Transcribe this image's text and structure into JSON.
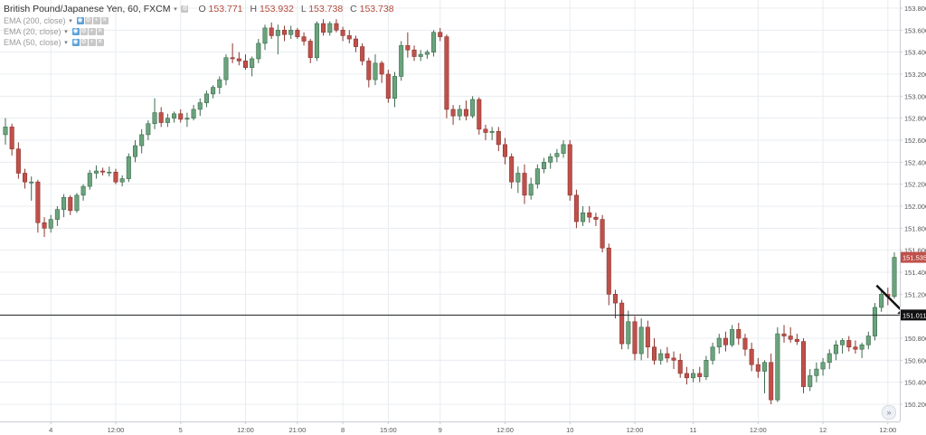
{
  "legend": {
    "symbol": "British Pound/Japanese Yen, 60, FXCM",
    "open_label": "O",
    "open": "153.771",
    "high_label": "H",
    "high": "153.932",
    "low_label": "L",
    "low": "153.738",
    "close_label": "C",
    "close": "153.738",
    "indicators": [
      {
        "name": "EMA (200, close)"
      },
      {
        "name": "EMA (20, close)"
      },
      {
        "name": "EMA (50, close)"
      }
    ]
  },
  "icons": {
    "dropdown": "chevron-down-icon",
    "visibility": "eye-icon",
    "settings": "gear-icon",
    "remove": "close-icon",
    "more": "plus-icon",
    "scroll": "double-chevron-right-icon"
  },
  "colors": {
    "up": "#6aa37c",
    "down": "#c0504a",
    "grid": "#e8ecf0",
    "axis_text": "#555555",
    "price_badge": "#c0504a",
    "line_badge": "#111111"
  },
  "chart_data": {
    "type": "candlestick",
    "symbol": "British Pound/Japanese Yen",
    "interval": "60",
    "source": "FXCM",
    "y_ticks": [
      "153.800",
      "153.600",
      "153.400",
      "153.200",
      "153.000",
      "152.800",
      "152.600",
      "152.400",
      "152.200",
      "152.000",
      "151.800",
      "151.600",
      "151.400",
      "151.200",
      "151.000",
      "150.800",
      "150.600",
      "150.400",
      "150.200"
    ],
    "ylim": [
      150.1,
      153.9
    ],
    "x_ticks": [
      {
        "label": "4",
        "bar": 7
      },
      {
        "label": "12:00",
        "bar": 17
      },
      {
        "label": "5",
        "bar": 27
      },
      {
        "label": "12:00",
        "bar": 37
      },
      {
        "label": "21:00",
        "bar": 45
      },
      {
        "label": "8",
        "bar": 52
      },
      {
        "label": "15:00",
        "bar": 59
      },
      {
        "label": "9",
        "bar": 67
      },
      {
        "label": "12:00",
        "bar": 77
      },
      {
        "label": "10",
        "bar": 87
      },
      {
        "label": "12:00",
        "bar": 97
      },
      {
        "label": "11",
        "bar": 106
      },
      {
        "label": "12:00",
        "bar": 116
      },
      {
        "label": "12",
        "bar": 126
      },
      {
        "label": "12:00",
        "bar": 136
      }
    ],
    "horizontal_line": 151.011,
    "last_price": 151.535,
    "arrow_annotation": {
      "bar": 139,
      "price": 151.0
    },
    "candles": [
      {
        "o": 152.65,
        "h": 152.8,
        "l": 152.56,
        "c": 152.72
      },
      {
        "o": 152.72,
        "h": 152.75,
        "l": 152.46,
        "c": 152.52
      },
      {
        "o": 152.52,
        "h": 152.58,
        "l": 152.25,
        "c": 152.3
      },
      {
        "o": 152.3,
        "h": 152.34,
        "l": 152.16,
        "c": 152.22
      },
      {
        "o": 152.22,
        "h": 152.27,
        "l": 152.05,
        "c": 152.22
      },
      {
        "o": 152.22,
        "h": 152.24,
        "l": 151.76,
        "c": 151.85
      },
      {
        "o": 151.85,
        "h": 151.9,
        "l": 151.72,
        "c": 151.8
      },
      {
        "o": 151.8,
        "h": 151.92,
        "l": 151.76,
        "c": 151.88
      },
      {
        "o": 151.88,
        "h": 152.0,
        "l": 151.82,
        "c": 151.97
      },
      {
        "o": 151.97,
        "h": 152.11,
        "l": 151.9,
        "c": 152.08
      },
      {
        "o": 152.08,
        "h": 152.1,
        "l": 151.92,
        "c": 151.96
      },
      {
        "o": 151.96,
        "h": 152.12,
        "l": 151.94,
        "c": 152.1
      },
      {
        "o": 152.1,
        "h": 152.2,
        "l": 152.05,
        "c": 152.18
      },
      {
        "o": 152.18,
        "h": 152.33,
        "l": 152.15,
        "c": 152.3
      },
      {
        "o": 152.3,
        "h": 152.37,
        "l": 152.25,
        "c": 152.32
      },
      {
        "o": 152.32,
        "h": 152.35,
        "l": 152.28,
        "c": 152.31
      },
      {
        "o": 152.31,
        "h": 152.36,
        "l": 152.27,
        "c": 152.31
      },
      {
        "o": 152.31,
        "h": 152.34,
        "l": 152.2,
        "c": 152.22
      },
      {
        "o": 152.22,
        "h": 152.28,
        "l": 152.18,
        "c": 152.25
      },
      {
        "o": 152.25,
        "h": 152.48,
        "l": 152.22,
        "c": 152.45
      },
      {
        "o": 152.45,
        "h": 152.6,
        "l": 152.4,
        "c": 152.55
      },
      {
        "o": 152.55,
        "h": 152.7,
        "l": 152.48,
        "c": 152.65
      },
      {
        "o": 152.65,
        "h": 152.78,
        "l": 152.6,
        "c": 152.75
      },
      {
        "o": 152.75,
        "h": 152.98,
        "l": 152.7,
        "c": 152.85
      },
      {
        "o": 152.85,
        "h": 152.9,
        "l": 152.72,
        "c": 152.76
      },
      {
        "o": 152.76,
        "h": 152.84,
        "l": 152.72,
        "c": 152.8
      },
      {
        "o": 152.8,
        "h": 152.86,
        "l": 152.76,
        "c": 152.84
      },
      {
        "o": 152.84,
        "h": 152.88,
        "l": 152.76,
        "c": 152.79
      },
      {
        "o": 152.79,
        "h": 152.85,
        "l": 152.72,
        "c": 152.8
      },
      {
        "o": 152.8,
        "h": 152.92,
        "l": 152.78,
        "c": 152.88
      },
      {
        "o": 152.88,
        "h": 152.98,
        "l": 152.82,
        "c": 152.94
      },
      {
        "o": 152.94,
        "h": 153.05,
        "l": 152.9,
        "c": 153.02
      },
      {
        "o": 153.02,
        "h": 153.1,
        "l": 152.98,
        "c": 153.08
      },
      {
        "o": 153.08,
        "h": 153.18,
        "l": 153.02,
        "c": 153.15
      },
      {
        "o": 153.15,
        "h": 153.38,
        "l": 153.1,
        "c": 153.35
      },
      {
        "o": 153.35,
        "h": 153.48,
        "l": 153.3,
        "c": 153.34
      },
      {
        "o": 153.34,
        "h": 153.4,
        "l": 153.28,
        "c": 153.32
      },
      {
        "o": 153.32,
        "h": 153.38,
        "l": 153.24,
        "c": 153.26
      },
      {
        "o": 153.26,
        "h": 153.36,
        "l": 153.18,
        "c": 153.34
      },
      {
        "o": 153.34,
        "h": 153.52,
        "l": 153.3,
        "c": 153.48
      },
      {
        "o": 153.48,
        "h": 153.65,
        "l": 153.42,
        "c": 153.62
      },
      {
        "o": 153.62,
        "h": 153.67,
        "l": 153.52,
        "c": 153.55
      },
      {
        "o": 153.55,
        "h": 153.65,
        "l": 153.38,
        "c": 153.6
      },
      {
        "o": 153.6,
        "h": 153.64,
        "l": 153.5,
        "c": 153.56
      },
      {
        "o": 153.56,
        "h": 153.64,
        "l": 153.52,
        "c": 153.6
      },
      {
        "o": 153.6,
        "h": 153.62,
        "l": 153.52,
        "c": 153.54
      },
      {
        "o": 153.54,
        "h": 153.58,
        "l": 153.46,
        "c": 153.5
      },
      {
        "o": 153.5,
        "h": 153.52,
        "l": 153.3,
        "c": 153.35
      },
      {
        "o": 153.35,
        "h": 153.68,
        "l": 153.32,
        "c": 153.66
      },
      {
        "o": 153.66,
        "h": 153.7,
        "l": 153.55,
        "c": 153.58
      },
      {
        "o": 153.58,
        "h": 153.68,
        "l": 153.55,
        "c": 153.66
      },
      {
        "o": 153.66,
        "h": 153.7,
        "l": 153.58,
        "c": 153.6
      },
      {
        "o": 153.6,
        "h": 153.63,
        "l": 153.5,
        "c": 153.55
      },
      {
        "o": 153.55,
        "h": 153.6,
        "l": 153.48,
        "c": 153.52
      },
      {
        "o": 153.52,
        "h": 153.55,
        "l": 153.4,
        "c": 153.45
      },
      {
        "o": 153.45,
        "h": 153.48,
        "l": 153.28,
        "c": 153.32
      },
      {
        "o": 153.32,
        "h": 153.35,
        "l": 153.08,
        "c": 153.15
      },
      {
        "o": 153.15,
        "h": 153.38,
        "l": 153.1,
        "c": 153.3
      },
      {
        "o": 153.3,
        "h": 153.32,
        "l": 153.12,
        "c": 153.2
      },
      {
        "o": 153.2,
        "h": 153.24,
        "l": 152.94,
        "c": 152.98
      },
      {
        "o": 152.98,
        "h": 153.22,
        "l": 152.9,
        "c": 153.18
      },
      {
        "o": 153.18,
        "h": 153.5,
        "l": 153.14,
        "c": 153.46
      },
      {
        "o": 153.46,
        "h": 153.58,
        "l": 153.35,
        "c": 153.42
      },
      {
        "o": 153.42,
        "h": 153.46,
        "l": 153.32,
        "c": 153.36
      },
      {
        "o": 153.36,
        "h": 153.42,
        "l": 153.32,
        "c": 153.38
      },
      {
        "o": 153.38,
        "h": 153.42,
        "l": 153.34,
        "c": 153.4
      },
      {
        "o": 153.4,
        "h": 153.6,
        "l": 153.36,
        "c": 153.58
      },
      {
        "o": 153.58,
        "h": 153.62,
        "l": 153.5,
        "c": 153.54
      },
      {
        "o": 153.54,
        "h": 153.56,
        "l": 152.8,
        "c": 152.88
      },
      {
        "o": 152.88,
        "h": 152.92,
        "l": 152.74,
        "c": 152.82
      },
      {
        "o": 152.82,
        "h": 152.92,
        "l": 152.78,
        "c": 152.88
      },
      {
        "o": 152.88,
        "h": 152.96,
        "l": 152.78,
        "c": 152.82
      },
      {
        "o": 152.82,
        "h": 153.0,
        "l": 152.8,
        "c": 152.97
      },
      {
        "o": 152.97,
        "h": 152.99,
        "l": 152.65,
        "c": 152.7
      },
      {
        "o": 152.7,
        "h": 152.74,
        "l": 152.6,
        "c": 152.67
      },
      {
        "o": 152.67,
        "h": 152.72,
        "l": 152.6,
        "c": 152.68
      },
      {
        "o": 152.68,
        "h": 152.72,
        "l": 152.5,
        "c": 152.56
      },
      {
        "o": 152.56,
        "h": 152.62,
        "l": 152.38,
        "c": 152.45
      },
      {
        "o": 152.45,
        "h": 152.48,
        "l": 152.16,
        "c": 152.22
      },
      {
        "o": 152.22,
        "h": 152.36,
        "l": 152.12,
        "c": 152.3
      },
      {
        "o": 152.3,
        "h": 152.38,
        "l": 152.02,
        "c": 152.1
      },
      {
        "o": 152.1,
        "h": 152.26,
        "l": 152.06,
        "c": 152.2
      },
      {
        "o": 152.2,
        "h": 152.38,
        "l": 152.16,
        "c": 152.34
      },
      {
        "o": 152.34,
        "h": 152.44,
        "l": 152.3,
        "c": 152.4
      },
      {
        "o": 152.4,
        "h": 152.48,
        "l": 152.34,
        "c": 152.45
      },
      {
        "o": 152.45,
        "h": 152.52,
        "l": 152.4,
        "c": 152.48
      },
      {
        "o": 152.48,
        "h": 152.6,
        "l": 152.44,
        "c": 152.56
      },
      {
        "o": 152.56,
        "h": 152.6,
        "l": 152.05,
        "c": 152.1
      },
      {
        "o": 152.1,
        "h": 152.15,
        "l": 151.8,
        "c": 151.86
      },
      {
        "o": 151.86,
        "h": 152.0,
        "l": 151.82,
        "c": 151.94
      },
      {
        "o": 151.94,
        "h": 152.0,
        "l": 151.85,
        "c": 151.9
      },
      {
        "o": 151.9,
        "h": 151.94,
        "l": 151.82,
        "c": 151.88
      },
      {
        "o": 151.88,
        "h": 151.92,
        "l": 151.58,
        "c": 151.62
      },
      {
        "o": 151.62,
        "h": 151.66,
        "l": 151.1,
        "c": 151.2
      },
      {
        "o": 151.2,
        "h": 151.24,
        "l": 150.98,
        "c": 151.12
      },
      {
        "o": 151.12,
        "h": 151.15,
        "l": 150.7,
        "c": 150.75
      },
      {
        "o": 150.75,
        "h": 151.05,
        "l": 150.7,
        "c": 150.95
      },
      {
        "o": 150.95,
        "h": 151.0,
        "l": 150.6,
        "c": 150.66
      },
      {
        "o": 150.66,
        "h": 150.98,
        "l": 150.6,
        "c": 150.9
      },
      {
        "o": 150.9,
        "h": 150.96,
        "l": 150.62,
        "c": 150.72
      },
      {
        "o": 150.72,
        "h": 150.8,
        "l": 150.56,
        "c": 150.6
      },
      {
        "o": 150.6,
        "h": 150.7,
        "l": 150.56,
        "c": 150.66
      },
      {
        "o": 150.66,
        "h": 150.72,
        "l": 150.58,
        "c": 150.62
      },
      {
        "o": 150.62,
        "h": 150.68,
        "l": 150.52,
        "c": 150.6
      },
      {
        "o": 150.6,
        "h": 150.66,
        "l": 150.44,
        "c": 150.48
      },
      {
        "o": 150.48,
        "h": 150.54,
        "l": 150.38,
        "c": 150.44
      },
      {
        "o": 150.44,
        "h": 150.52,
        "l": 150.4,
        "c": 150.48
      },
      {
        "o": 150.48,
        "h": 150.54,
        "l": 150.4,
        "c": 150.45
      },
      {
        "o": 150.45,
        "h": 150.64,
        "l": 150.42,
        "c": 150.6
      },
      {
        "o": 150.6,
        "h": 150.76,
        "l": 150.56,
        "c": 150.72
      },
      {
        "o": 150.72,
        "h": 150.84,
        "l": 150.66,
        "c": 150.8
      },
      {
        "o": 150.8,
        "h": 150.86,
        "l": 150.68,
        "c": 150.74
      },
      {
        "o": 150.74,
        "h": 150.92,
        "l": 150.72,
        "c": 150.88
      },
      {
        "o": 150.88,
        "h": 150.94,
        "l": 150.74,
        "c": 150.8
      },
      {
        "o": 150.8,
        "h": 150.84,
        "l": 150.64,
        "c": 150.7
      },
      {
        "o": 150.7,
        "h": 150.76,
        "l": 150.5,
        "c": 150.56
      },
      {
        "o": 150.56,
        "h": 150.62,
        "l": 150.44,
        "c": 150.5
      },
      {
        "o": 150.5,
        "h": 150.6,
        "l": 150.3,
        "c": 150.58
      },
      {
        "o": 150.58,
        "h": 150.66,
        "l": 150.2,
        "c": 150.24
      },
      {
        "o": 150.24,
        "h": 150.9,
        "l": 150.22,
        "c": 150.84
      },
      {
        "o": 150.84,
        "h": 150.92,
        "l": 150.76,
        "c": 150.82
      },
      {
        "o": 150.82,
        "h": 150.9,
        "l": 150.76,
        "c": 150.79
      },
      {
        "o": 150.79,
        "h": 150.84,
        "l": 150.74,
        "c": 150.77
      },
      {
        "o": 150.77,
        "h": 150.8,
        "l": 150.3,
        "c": 150.36
      },
      {
        "o": 150.36,
        "h": 150.52,
        "l": 150.32,
        "c": 150.46
      },
      {
        "o": 150.46,
        "h": 150.58,
        "l": 150.4,
        "c": 150.52
      },
      {
        "o": 150.52,
        "h": 150.62,
        "l": 150.46,
        "c": 150.58
      },
      {
        "o": 150.58,
        "h": 150.7,
        "l": 150.52,
        "c": 150.66
      },
      {
        "o": 150.66,
        "h": 150.78,
        "l": 150.6,
        "c": 150.74
      },
      {
        "o": 150.74,
        "h": 150.8,
        "l": 150.66,
        "c": 150.78
      },
      {
        "o": 150.78,
        "h": 150.82,
        "l": 150.68,
        "c": 150.72
      },
      {
        "o": 150.72,
        "h": 150.78,
        "l": 150.66,
        "c": 150.7
      },
      {
        "o": 150.7,
        "h": 150.76,
        "l": 150.62,
        "c": 150.74
      },
      {
        "o": 150.74,
        "h": 150.86,
        "l": 150.7,
        "c": 150.82
      },
      {
        "o": 150.82,
        "h": 151.12,
        "l": 150.78,
        "c": 151.08
      },
      {
        "o": 151.08,
        "h": 151.24,
        "l": 151.04,
        "c": 151.2
      },
      {
        "o": 151.2,
        "h": 151.26,
        "l": 151.1,
        "c": 151.18
      },
      {
        "o": 151.18,
        "h": 151.58,
        "l": 151.16,
        "c": 151.535
      }
    ]
  }
}
